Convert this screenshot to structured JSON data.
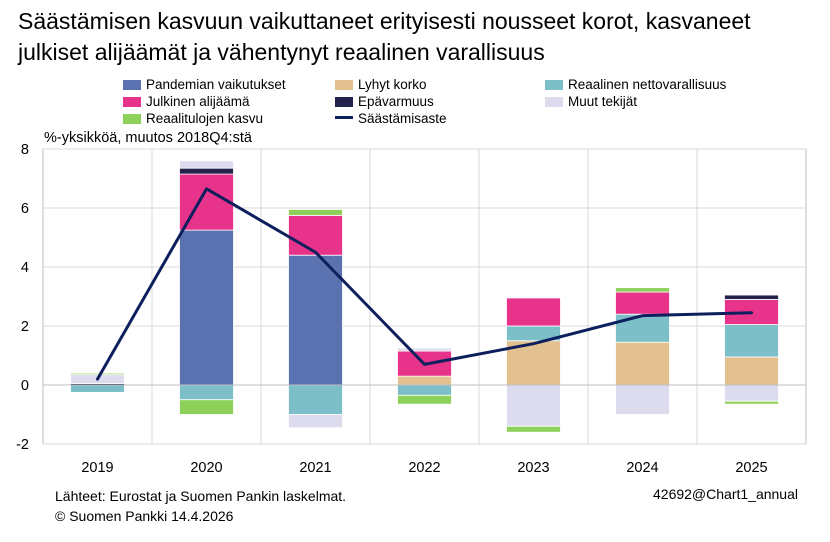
{
  "title": "Säästämisen kasvuun vaikuttaneet erityisesti nousseet korot, kasvaneet julkiset alijäämät ja vähentynyt reaalinen varallisuus",
  "units_label": "%-yksikköä, muutos 2018Q4:stä",
  "footer": {
    "source": "Lähteet: Eurostat ja Suomen Pankin laskelmat.",
    "copyright": "© Suomen Pankki 14.4.2026",
    "chart_id": "42692@Chart1_annual"
  },
  "legend": [
    {
      "label": "Pandemian vaikutukset",
      "color": "#5b72b0",
      "kind": "bar"
    },
    {
      "label": "Lyhyt korko",
      "color": "#e2c08f",
      "kind": "bar"
    },
    {
      "label": "Reaalinen nettovarallisuus",
      "color": "#7cbfc8",
      "kind": "bar"
    },
    {
      "label": "Julkinen alijäämä",
      "color": "#e8338a",
      "kind": "bar"
    },
    {
      "label": "Epävarmuus",
      "color": "#23234d",
      "kind": "bar"
    },
    {
      "label": "Muut tekijät",
      "color": "#dcdcee",
      "kind": "bar"
    },
    {
      "label": "Reaalitulojen  kasvu",
      "color": "#8ed15a",
      "kind": "bar"
    },
    {
      "label": "Säästämisaste",
      "color": "#0d1f5c",
      "kind": "line"
    }
  ],
  "chart_data": {
    "type": "bar",
    "stacked": true,
    "categories": [
      "2019",
      "2020",
      "2021",
      "2022",
      "2023",
      "2024",
      "2025"
    ],
    "ylim": [
      -2,
      8
    ],
    "yticks": [
      "-2",
      "0",
      "2",
      "4",
      "6",
      "8"
    ],
    "ytick_values": [
      -2,
      0,
      2,
      4,
      6,
      8
    ],
    "grid": true,
    "series": [
      {
        "name": "Pandemian vaikutukset",
        "color": "#5b72b0",
        "values": [
          0,
          5.25,
          4.4,
          0,
          0,
          0,
          0
        ]
      },
      {
        "name": "Lyhyt korko",
        "color": "#e2c08f",
        "values": [
          0,
          0,
          0,
          0.3,
          1.5,
          1.45,
          0.95
        ]
      },
      {
        "name": "Reaalinen nettovarallisuus",
        "color": "#7cbfc8",
        "values": [
          -0.25,
          -0.5,
          -1.0,
          -0.35,
          0.5,
          0.95,
          1.1
        ]
      },
      {
        "name": "Julkinen alijäämä",
        "color": "#e8338a",
        "values": [
          0,
          1.9,
          1.35,
          0.85,
          0.95,
          0.75,
          0.85
        ]
      },
      {
        "name": "Epävarmuus",
        "color": "#23234d",
        "values": [
          0.05,
          0.2,
          0,
          0,
          0,
          0,
          0.15
        ]
      },
      {
        "name": "Muut tekijät",
        "color": "#dcdcee",
        "values": [
          0.3,
          0.25,
          -0.45,
          0.1,
          -1.4,
          -1.0,
          -0.55
        ]
      },
      {
        "name": "Reaalitulojen  kasvu",
        "color": "#8ed15a",
        "values": [
          0.05,
          -0.5,
          0.2,
          -0.3,
          -0.2,
          0.15,
          -0.1
        ]
      }
    ],
    "line": {
      "name": "Säästämisaste",
      "color": "#0d1f5c",
      "values": [
        0.2,
        6.65,
        4.5,
        0.7,
        1.4,
        2.35,
        2.45
      ]
    }
  }
}
